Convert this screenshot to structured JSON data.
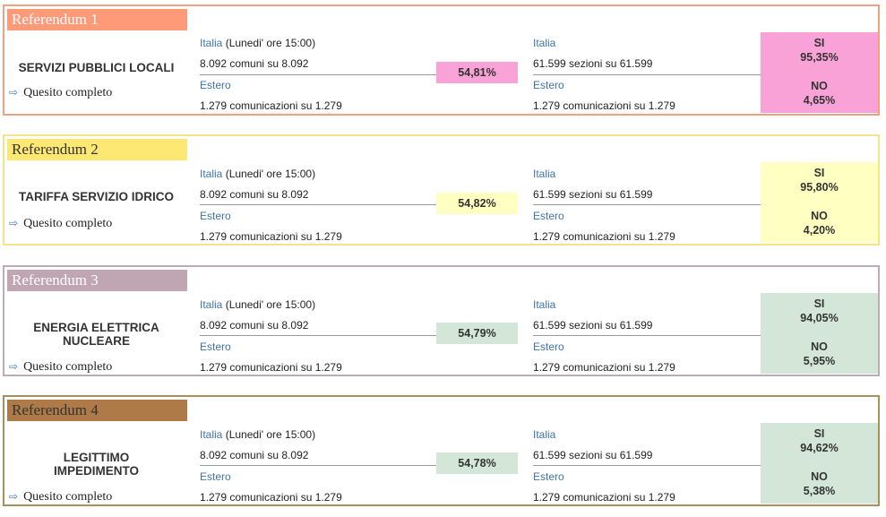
{
  "common": {
    "italia_label": "Italia",
    "italia_time": "(Lunedi' ore 15:00)",
    "estero_label": "Estero",
    "comuni": "8.092 comuni su 8.092",
    "comunicazioni": "1.279 comunicazioni su 1.279",
    "sezioni": "61.599 sezioni su 61.599",
    "link_label": "Quesito completo",
    "si_label": "SI",
    "no_label": "NO"
  },
  "referendums": [
    {
      "tab": "Referendum 1",
      "title_line1": "SERVIZI PUBBLICI LOCALI",
      "title_line2": "",
      "affluenza": "54,81%",
      "si": "95,35%",
      "no": "4,65%",
      "colors": {
        "border": "#f0a184",
        "tab_bg": "#ff9a79",
        "tab_text": "#ffffff",
        "pct_bg": "#f8a2d7",
        "res_bg": "#f8a2d7"
      }
    },
    {
      "tab": "Referendum 2",
      "title_line1": "TARIFFA SERVIZIO IDRICO",
      "title_line2": "",
      "affluenza": "54,82%",
      "si": "95,80%",
      "no": "4,20%",
      "colors": {
        "border": "#f3e48a",
        "tab_bg": "#fde873",
        "tab_text": "#333333",
        "pct_bg": "#ffffc2",
        "res_bg": "#ffffc2"
      }
    },
    {
      "tab": "Referendum 3",
      "title_line1": "ENERGIA ELETTRICA",
      "title_line2": "NUCLEARE",
      "affluenza": "54,79%",
      "si": "94,05%",
      "no": "5,95%",
      "colors": {
        "border": "#bfaab8",
        "tab_bg": "#bfa6b2",
        "tab_text": "#ffffff",
        "pct_bg": "#d3e6d7",
        "res_bg": "#d3e6d7"
      }
    },
    {
      "tab": "Referendum 4",
      "title_line1": "LEGITTIMO",
      "title_line2": "IMPEDIMENTO",
      "affluenza": "54,78%",
      "si": "94,62%",
      "no": "5,38%",
      "colors": {
        "border": "#a88f5c",
        "tab_bg": "#ae7a48",
        "tab_text": "#333333",
        "pct_bg": "#d3e6d7",
        "res_bg": "#d3e6d7"
      }
    }
  ]
}
